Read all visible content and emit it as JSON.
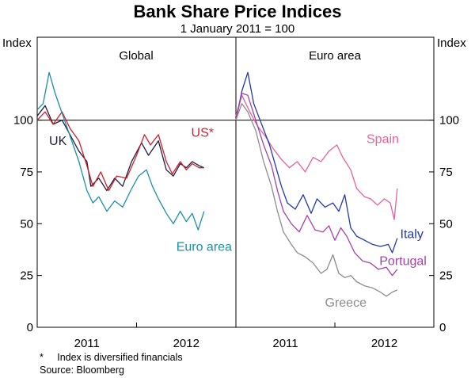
{
  "chart_data": {
    "title": "Bank Share Price Indices",
    "subtitle": "1 January 2011 = 100",
    "type": "line",
    "y_axis_label_left": "Index",
    "y_axis_label_right": "Index",
    "ylim": [
      0,
      140
    ],
    "yticks": [
      0,
      25,
      50,
      75,
      100
    ],
    "reference_line": 100,
    "xlim": [
      2010.5,
      2012.5
    ],
    "xticks": [
      {
        "label": "2011",
        "pos": 2011.0
      },
      {
        "label": "2012",
        "pos": 2012.0
      }
    ],
    "panels": [
      {
        "title": "Global",
        "series": [
          {
            "name": "UK",
            "color": "#1f1f3d",
            "label_pos": [
              2010.62,
              88
            ],
            "points": [
              [
                2010.5,
                102
              ],
              [
                2010.58,
                107
              ],
              [
                2010.66,
                98
              ],
              [
                2010.75,
                100
              ],
              [
                2010.83,
                93
              ],
              [
                2010.92,
                85
              ],
              [
                2011.0,
                80
              ],
              [
                2011.04,
                68
              ],
              [
                2011.12,
                72
              ],
              [
                2011.2,
                66
              ],
              [
                2011.28,
                72
              ],
              [
                2011.36,
                68
              ],
              [
                2011.45,
                80
              ],
              [
                2011.55,
                89
              ],
              [
                2011.62,
                83
              ],
              [
                2011.72,
                90
              ],
              [
                2011.8,
                76
              ],
              [
                2011.87,
                73
              ],
              [
                2011.94,
                79
              ],
              [
                2012.0,
                77
              ],
              [
                2012.06,
                80
              ],
              [
                2012.13,
                78
              ],
              [
                2012.18,
                77
              ]
            ]
          },
          {
            "name": "US*",
            "color": "#cc1f2e",
            "label_pos": [
              2012.05,
              92
            ],
            "points": [
              [
                2010.5,
                100
              ],
              [
                2010.58,
                104
              ],
              [
                2010.66,
                98
              ],
              [
                2010.75,
                104
              ],
              [
                2010.83,
                96
              ],
              [
                2010.92,
                90
              ],
              [
                2011.0,
                78
              ],
              [
                2011.06,
                68
              ],
              [
                2011.14,
                75
              ],
              [
                2011.22,
                66
              ],
              [
                2011.3,
                73
              ],
              [
                2011.4,
                72
              ],
              [
                2011.5,
                83
              ],
              [
                2011.58,
                93
              ],
              [
                2011.64,
                88
              ],
              [
                2011.72,
                93
              ],
              [
                2011.8,
                80
              ],
              [
                2011.86,
                74
              ],
              [
                2011.94,
                80
              ],
              [
                2012.0,
                76
              ],
              [
                2012.06,
                79
              ],
              [
                2012.13,
                77
              ],
              [
                2012.18,
                77
              ]
            ]
          },
          {
            "name": "Euro area",
            "color": "#1a8fa6",
            "label_pos": [
              2011.9,
              37
            ],
            "points": [
              [
                2010.5,
                105
              ],
              [
                2010.56,
                108
              ],
              [
                2010.62,
                123
              ],
              [
                2010.68,
                113
              ],
              [
                2010.76,
                102
              ],
              [
                2010.84,
                91
              ],
              [
                2010.92,
                80
              ],
              [
                2011.0,
                66
              ],
              [
                2011.06,
                60
              ],
              [
                2011.12,
                63
              ],
              [
                2011.2,
                56
              ],
              [
                2011.28,
                61
              ],
              [
                2011.36,
                58
              ],
              [
                2011.44,
                66
              ],
              [
                2011.52,
                73
              ],
              [
                2011.6,
                76
              ],
              [
                2011.66,
                68
              ],
              [
                2011.72,
                62
              ],
              [
                2011.8,
                55
              ],
              [
                2011.87,
                50
              ],
              [
                2011.94,
                56
              ],
              [
                2012.0,
                51
              ],
              [
                2012.06,
                55
              ],
              [
                2012.12,
                47
              ],
              [
                2012.18,
                56
              ]
            ]
          }
        ]
      },
      {
        "title": "Euro area",
        "series": [
          {
            "name": "Spain",
            "color": "#e8609c",
            "label_pos": [
              2011.82,
              89
            ],
            "points": [
              [
                2010.5,
                102
              ],
              [
                2010.56,
                112
              ],
              [
                2010.64,
                104
              ],
              [
                2010.72,
                97
              ],
              [
                2010.8,
                92
              ],
              [
                2010.88,
                86
              ],
              [
                2010.96,
                81
              ],
              [
                2011.04,
                77
              ],
              [
                2011.12,
                80
              ],
              [
                2011.2,
                75
              ],
              [
                2011.28,
                82
              ],
              [
                2011.36,
                80
              ],
              [
                2011.44,
                85
              ],
              [
                2011.52,
                88
              ],
              [
                2011.58,
                82
              ],
              [
                2011.66,
                76
              ],
              [
                2011.72,
                67
              ],
              [
                2011.8,
                63
              ],
              [
                2011.86,
                62
              ],
              [
                2011.93,
                59
              ],
              [
                2012.0,
                62
              ],
              [
                2012.06,
                60
              ],
              [
                2012.1,
                52
              ],
              [
                2012.13,
                67
              ]
            ]
          },
          {
            "name": "Italy",
            "color": "#2438a8",
            "label_pos": [
              2012.16,
              43
            ],
            "points": [
              [
                2010.5,
                100
              ],
              [
                2010.56,
                114
              ],
              [
                2010.62,
                123
              ],
              [
                2010.68,
                108
              ],
              [
                2010.76,
                98
              ],
              [
                2010.84,
                88
              ],
              [
                2010.9,
                78
              ],
              [
                2010.96,
                68
              ],
              [
                2011.02,
                60
              ],
              [
                2011.1,
                57
              ],
              [
                2011.18,
                64
              ],
              [
                2011.26,
                55
              ],
              [
                2011.32,
                62
              ],
              [
                2011.4,
                58
              ],
              [
                2011.48,
                60
              ],
              [
                2011.54,
                56
              ],
              [
                2011.6,
                64
              ],
              [
                2011.66,
                48
              ],
              [
                2011.72,
                44
              ],
              [
                2011.8,
                42
              ],
              [
                2011.88,
                40
              ],
              [
                2011.96,
                39
              ],
              [
                2012.04,
                40
              ],
              [
                2012.08,
                36
              ],
              [
                2012.13,
                43
              ]
            ]
          },
          {
            "name": "Portugal",
            "color": "#a640a8",
            "label_pos": [
              2011.95,
              30
            ],
            "points": [
              [
                2010.5,
                100
              ],
              [
                2010.56,
                113
              ],
              [
                2010.62,
                112
              ],
              [
                2010.7,
                100
              ],
              [
                2010.78,
                88
              ],
              [
                2010.86,
                78
              ],
              [
                2010.92,
                66
              ],
              [
                2010.98,
                56
              ],
              [
                2011.06,
                50
              ],
              [
                2011.14,
                46
              ],
              [
                2011.22,
                54
              ],
              [
                2011.3,
                47
              ],
              [
                2011.38,
                46
              ],
              [
                2011.44,
                49
              ],
              [
                2011.5,
                42
              ],
              [
                2011.56,
                48
              ],
              [
                2011.62,
                44
              ],
              [
                2011.7,
                36
              ],
              [
                2011.78,
                32
              ],
              [
                2011.86,
                31
              ],
              [
                2011.94,
                28
              ],
              [
                2012.02,
                29
              ],
              [
                2012.08,
                25
              ],
              [
                2012.13,
                28
              ]
            ]
          },
          {
            "name": "Greece",
            "color": "#8c8c8c",
            "label_pos": [
              2011.4,
              10
            ],
            "points": [
              [
                2010.5,
                100
              ],
              [
                2010.56,
                108
              ],
              [
                2010.62,
                104
              ],
              [
                2010.7,
                95
              ],
              [
                2010.78,
                80
              ],
              [
                2010.86,
                68
              ],
              [
                2010.92,
                56
              ],
              [
                2010.98,
                46
              ],
              [
                2011.06,
                40
              ],
              [
                2011.12,
                36
              ],
              [
                2011.2,
                34
              ],
              [
                2011.28,
                31
              ],
              [
                2011.36,
                26
              ],
              [
                2011.42,
                28
              ],
              [
                2011.48,
                35
              ],
              [
                2011.54,
                26
              ],
              [
                2011.6,
                24
              ],
              [
                2011.66,
                25
              ],
              [
                2011.72,
                22
              ],
              [
                2011.8,
                20
              ],
              [
                2011.88,
                19
              ],
              [
                2011.96,
                17
              ],
              [
                2012.02,
                15
              ],
              [
                2012.08,
                17
              ],
              [
                2012.13,
                18
              ]
            ]
          }
        ]
      }
    ]
  },
  "footnote": "*     Index is diversified financials",
  "source": "Source: Bloomberg"
}
